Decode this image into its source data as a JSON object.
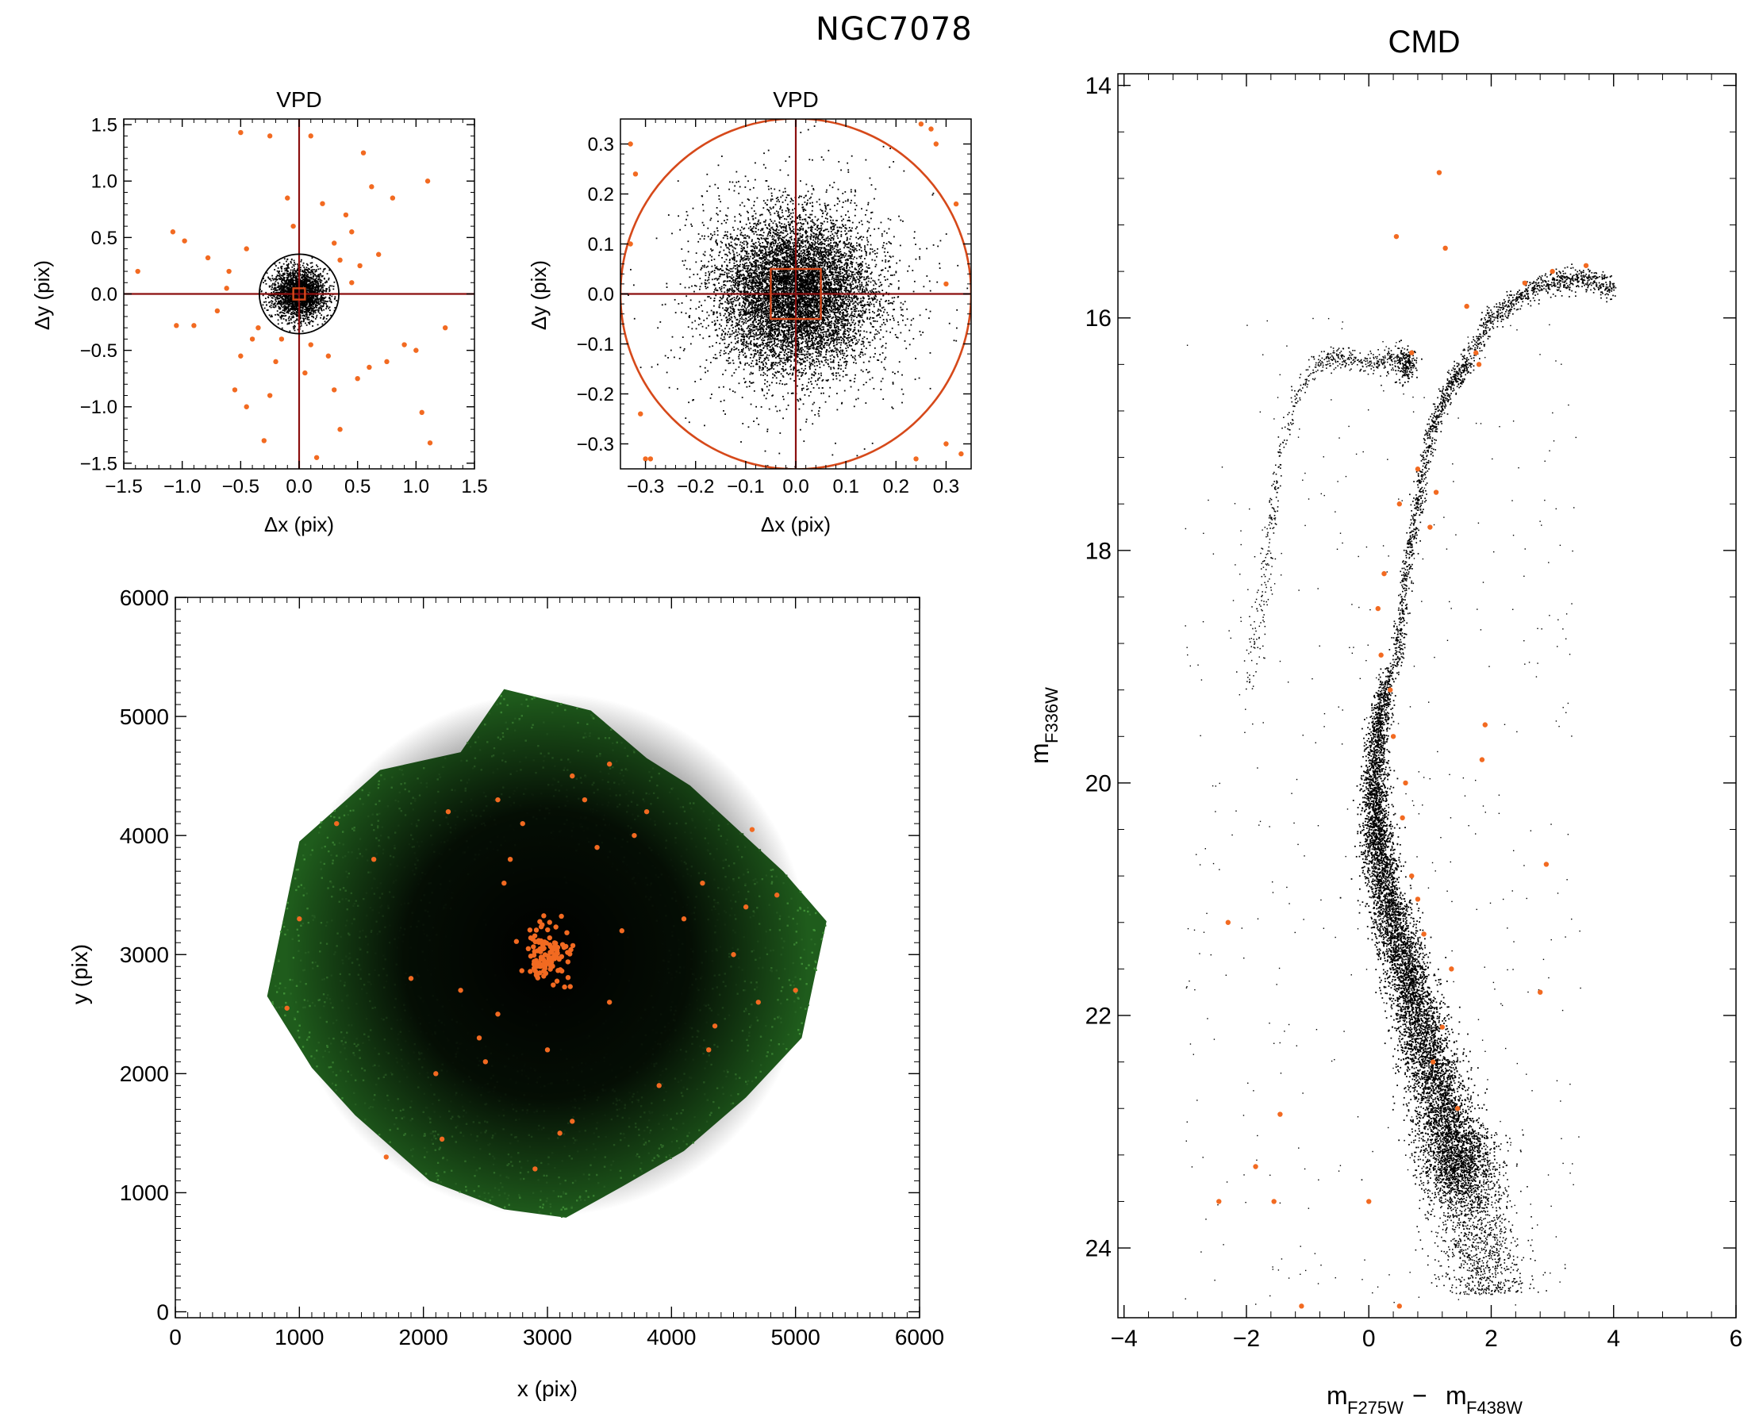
{
  "figure": {
    "title": "NGC7078"
  },
  "colors": {
    "background": "#000000",
    "selected": "#f26a21",
    "field": "#2f7a2a",
    "cut": "#8b0f0f",
    "circle": "#d6491a"
  },
  "chart_data": [
    {
      "id": "vpd1",
      "type": "scatter",
      "title": "VPD",
      "xlabel": "Δx (pix)",
      "ylabel": "Δy (pix)",
      "xlim": [
        -1.5,
        1.5
      ],
      "ylim": [
        -1.55,
        1.55
      ],
      "xticks": [
        -1.5,
        -1.0,
        -0.5,
        0.0,
        0.5,
        1.0,
        1.5
      ],
      "xtick_labels": [
        "−1.5",
        "−1.0",
        "−0.5",
        "0.0",
        "0.5",
        "1.0",
        "1.5"
      ],
      "yticks": [
        -1.5,
        -1.0,
        -0.5,
        0.0,
        0.5,
        1.0,
        1.5
      ],
      "ytick_labels": [
        "−1.5",
        "−1.0",
        "−0.5",
        "0.0",
        "0.5",
        "1.0",
        "1.5"
      ],
      "cross": [
        0,
        0
      ],
      "circle_radius": 0.34,
      "box_halfwidth": 0.05,
      "core_cloud": {
        "sigma": 0.11,
        "n": 2500
      },
      "series": [
        {
          "color": "orange",
          "x": [
            -0.5,
            -0.25,
            0.55,
            0.62,
            1.1,
            0.1,
            -1.38,
            -1.08,
            -0.98,
            -0.78,
            -0.45,
            -0.6,
            -0.4,
            -0.7,
            0.8,
            0.45,
            0.35,
            0.3,
            -1.05,
            -0.9,
            0.9,
            1.25,
            1.0,
            -0.55,
            -0.45,
            0.5,
            0.6,
            0.75,
            1.05,
            1.12,
            0.35,
            -0.3,
            0.15,
            0.05,
            0.25,
            -0.15,
            -0.2,
            0.4,
            -0.35,
            0.2,
            0.45,
            -0.5,
            0.3,
            -0.1,
            0.52,
            0.68,
            -0.62,
            -0.25,
            0.1,
            -0.05
          ],
          "y": [
            1.43,
            1.4,
            1.25,
            0.95,
            1.0,
            1.4,
            0.2,
            0.55,
            0.47,
            0.32,
            0.4,
            0.2,
            -0.4,
            -0.15,
            0.85,
            0.55,
            0.3,
            0.45,
            -0.28,
            -0.28,
            -0.45,
            -0.3,
            -0.5,
            -0.85,
            -1.0,
            -0.75,
            -0.65,
            -0.6,
            -1.05,
            -1.32,
            -1.2,
            -1.3,
            -1.45,
            -0.7,
            -0.55,
            -0.4,
            -0.6,
            0.7,
            -0.3,
            0.8,
            0.1,
            -0.55,
            -0.85,
            0.85,
            0.25,
            0.35,
            0.05,
            -0.9,
            -0.45,
            0.6
          ]
        }
      ]
    },
    {
      "id": "vpd2",
      "type": "scatter",
      "title": "VPD",
      "xlabel": "Δx (pix)",
      "ylabel": "Δy (pix)",
      "xlim": [
        -0.35,
        0.35
      ],
      "ylim": [
        -0.35,
        0.35
      ],
      "xticks": [
        -0.3,
        -0.2,
        -0.1,
        0.0,
        0.1,
        0.2,
        0.3
      ],
      "xtick_labels": [
        "−0.3",
        "−0.2",
        "−0.1",
        "0.0",
        "0.1",
        "0.2",
        "0.3"
      ],
      "yticks": [
        -0.3,
        -0.2,
        -0.1,
        0.0,
        0.1,
        0.2,
        0.3
      ],
      "ytick_labels": [
        "−0.3",
        "−0.2",
        "−0.1",
        "0.0",
        "0.1",
        "0.2",
        "0.3"
      ],
      "cross": [
        0,
        0
      ],
      "circle_radius": 0.35,
      "box_halfwidth": 0.05,
      "core_cloud": {
        "sigma": 0.075,
        "n": 9000
      },
      "series": [
        {
          "color": "orange",
          "x": [
            -0.33,
            -0.32,
            -0.33,
            -0.3,
            0.25,
            0.27,
            0.3,
            0.33,
            0.28,
            0.32,
            -0.31,
            -0.29,
            0.24,
            0.3
          ],
          "y": [
            0.3,
            0.24,
            0.1,
            -0.33,
            0.34,
            0.33,
            -0.3,
            -0.32,
            0.3,
            0.18,
            -0.24,
            -0.33,
            -0.33,
            0.02
          ]
        }
      ]
    },
    {
      "id": "xy",
      "type": "scatter",
      "title": "",
      "xlabel": "x (pix)",
      "ylabel": "y (pix)",
      "xlim": [
        0,
        6000
      ],
      "ylim": [
        -50,
        6000
      ],
      "xticks": [
        0,
        1000,
        2000,
        3000,
        4000,
        5000,
        6000
      ],
      "xtick_labels": [
        "0",
        "1000",
        "2000",
        "3000",
        "4000",
        "5000",
        "6000"
      ],
      "yticks": [
        0,
        1000,
        2000,
        3000,
        4000,
        5000,
        6000
      ],
      "ytick_labels": [
        "0",
        "1000",
        "2000",
        "3000",
        "4000",
        "5000",
        "6000"
      ],
      "footprint": [
        [
          740,
          2650
        ],
        [
          1000,
          3950
        ],
        [
          1650,
          4550
        ],
        [
          2300,
          4700
        ],
        [
          2650,
          5230
        ],
        [
          3350,
          5050
        ],
        [
          3800,
          4650
        ],
        [
          4150,
          4420
        ],
        [
          4900,
          3700
        ],
        [
          5250,
          3280
        ],
        [
          5050,
          2300
        ],
        [
          4600,
          1800
        ],
        [
          4100,
          1350
        ],
        [
          3600,
          1050
        ],
        [
          3150,
          790
        ],
        [
          2650,
          860
        ],
        [
          2050,
          1100
        ],
        [
          1450,
          1650
        ],
        [
          1100,
          2050
        ]
      ],
      "center": [
        3000,
        3000
      ],
      "series": [
        {
          "color": "orange",
          "x": [
            1300,
            1600,
            2200,
            2600,
            3200,
            3500,
            3800,
            4250,
            4600,
            4850,
            5000,
            4700,
            4300,
            2500,
            2150,
            1700,
            1000,
            900,
            3200,
            3900,
            4350,
            3100,
            2900,
            2700,
            3400,
            3600,
            2300,
            2450,
            4100,
            4500,
            2650,
            2800,
            3300,
            3700,
            4650,
            1900,
            2100,
            2600,
            3000,
            3500
          ],
          "y": [
            4100,
            3800,
            4200,
            4300,
            4500,
            4600,
            4200,
            3600,
            3400,
            3500,
            2700,
            2600,
            2200,
            2100,
            1450,
            1300,
            3300,
            2550,
            1600,
            1900,
            2400,
            1500,
            1200,
            3800,
            3900,
            3200,
            2700,
            2300,
            3300,
            3000,
            3600,
            4100,
            4300,
            4000,
            4050,
            2800,
            2000,
            2500,
            2200,
            2600
          ]
        }
      ]
    },
    {
      "id": "cmd",
      "type": "scatter",
      "title": "CMD",
      "xlabel": "m F275W − m F438W",
      "ylabel": "m F336W",
      "xlim": [
        -4.1,
        6.0
      ],
      "ylim": [
        24.6,
        13.9
      ],
      "xticks": [
        -4,
        -2,
        0,
        2,
        4,
        6
      ],
      "xtick_labels": [
        "−4",
        "−2",
        "0",
        "2",
        "4",
        "6"
      ],
      "yticks": [
        14,
        16,
        18,
        20,
        22,
        24
      ],
      "ytick_labels": [
        "14",
        "16",
        "18",
        "20",
        "22",
        "24"
      ],
      "rgb_ridge": {
        "x": [
          0.45,
          0.6,
          0.8,
          1.0,
          1.3,
          1.6,
          2.0,
          2.5,
          3.0,
          3.5,
          4.0
        ],
        "y": [
          19.0,
          18.3,
          17.6,
          17.0,
          16.6,
          16.4,
          16.0,
          15.8,
          15.7,
          15.65,
          15.75
        ]
      },
      "hb_ridge": {
        "x": [
          -1.6,
          -1.45,
          -1.2,
          -0.9,
          -0.6,
          -0.3,
          0.0,
          0.3,
          0.55,
          0.7
        ],
        "y": [
          17.8,
          17.2,
          16.7,
          16.4,
          16.35,
          16.35,
          16.4,
          16.38,
          16.35,
          16.4
        ]
      },
      "ms_ridge": {
        "x": [
          0.35,
          0.15,
          0.1,
          0.15,
          0.3,
          0.55,
          0.8,
          1.05,
          1.3,
          1.6
        ],
        "y": [
          19.0,
          19.5,
          20.0,
          20.5,
          21.0,
          21.5,
          22.0,
          22.5,
          23.0,
          23.5
        ]
      },
      "series": [
        {
          "color": "orange",
          "x": [
            1.15,
            0.45,
            1.25,
            1.6,
            1.8,
            2.55,
            3.0,
            3.55,
            0.7,
            1.75,
            0.8,
            0.5,
            1.0,
            1.1,
            1.9,
            1.85,
            2.9,
            2.8,
            -2.3,
            -1.45,
            -1.85,
            -2.45,
            -1.55,
            0.0,
            0.5,
            -1.1,
            0.15,
            0.2,
            0.4,
            0.55,
            0.7,
            0.9,
            1.2,
            1.45,
            1.05,
            0.35,
            0.6,
            0.8,
            1.35,
            0.25
          ],
          "y": [
            14.75,
            15.3,
            15.4,
            15.9,
            16.4,
            15.7,
            15.6,
            15.55,
            16.3,
            16.3,
            17.3,
            17.6,
            17.8,
            17.5,
            19.5,
            19.8,
            20.7,
            21.8,
            21.2,
            22.85,
            23.3,
            23.6,
            23.6,
            23.6,
            24.5,
            24.5,
            18.5,
            18.9,
            19.6,
            20.3,
            20.8,
            21.3,
            22.1,
            22.8,
            22.4,
            19.2,
            20.0,
            21.0,
            21.6,
            18.2
          ]
        }
      ]
    }
  ]
}
